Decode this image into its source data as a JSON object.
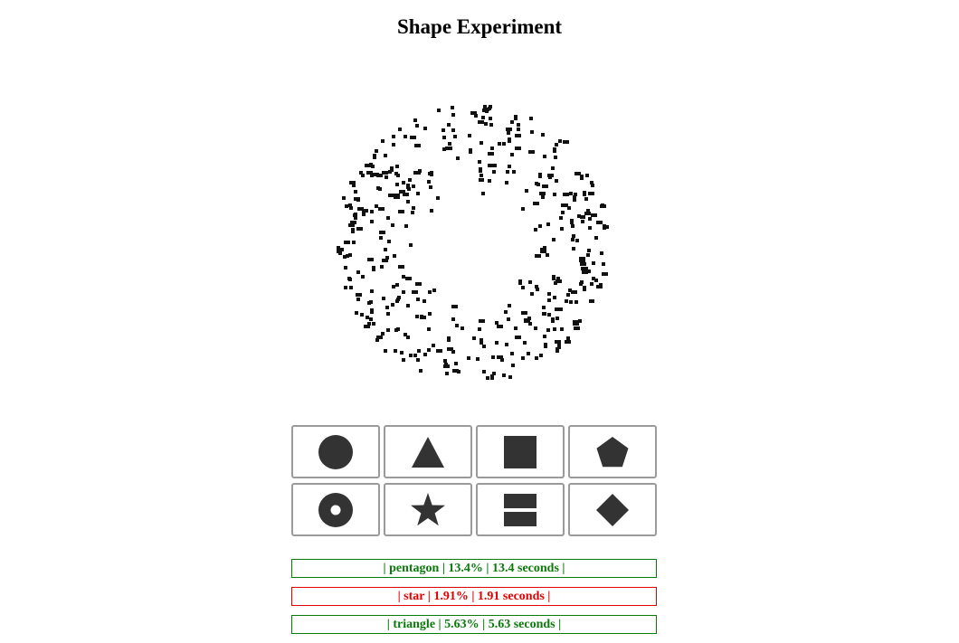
{
  "title": "Shape Experiment",
  "stimulus": {
    "description_icon": "dotted-ring-pattern",
    "dot_color": "#111111"
  },
  "buttons": [
    {
      "shape": "circle",
      "icon": "circle-icon"
    },
    {
      "shape": "triangle",
      "icon": "triangle-icon"
    },
    {
      "shape": "square",
      "icon": "square-icon"
    },
    {
      "shape": "pentagon",
      "icon": "pentagon-icon"
    },
    {
      "shape": "ring",
      "icon": "ring-icon"
    },
    {
      "shape": "star",
      "icon": "star-icon"
    },
    {
      "shape": "split-square",
      "icon": "split-square-icon"
    },
    {
      "shape": "diamond",
      "icon": "diamond-icon"
    }
  ],
  "shape_color": "#333333",
  "results": [
    {
      "text": "| pentagon | 13.4% | 13.4 seconds |",
      "status": "correct",
      "color": "#0a7a0a"
    },
    {
      "text": "| star | 1.91% | 1.91 seconds |",
      "status": "wrong",
      "color": "#e00000"
    },
    {
      "text": "| triangle | 5.63% | 5.63 seconds |",
      "status": "correct",
      "color": "#0a7a0a"
    }
  ]
}
